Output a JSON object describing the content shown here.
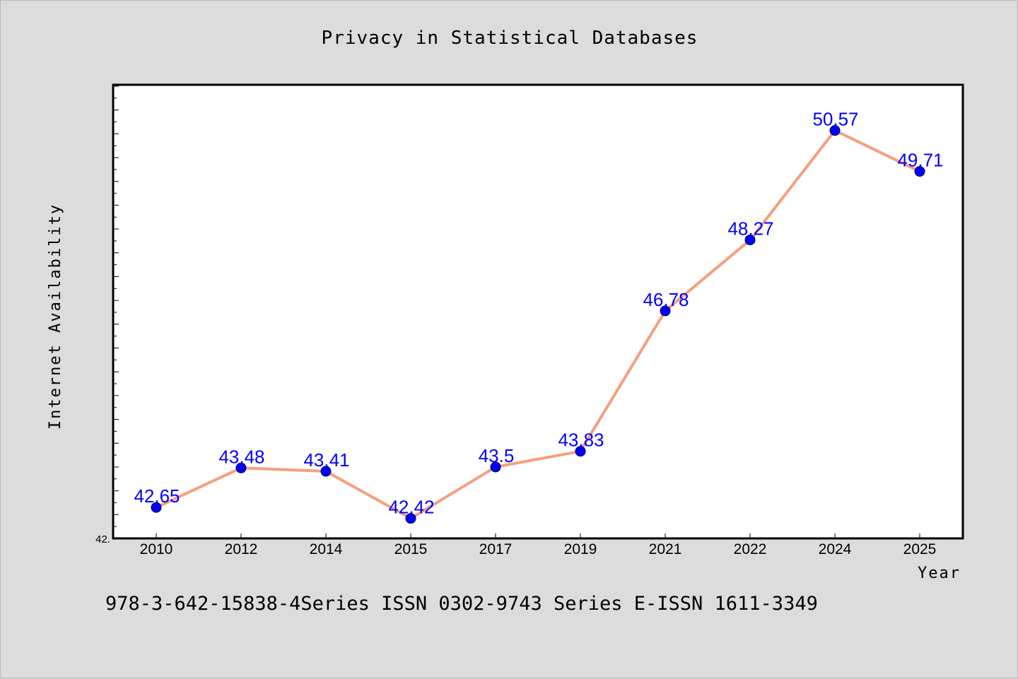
{
  "chart_data": {
    "type": "line",
    "title": "Privacy in Statistical Databases",
    "xlabel": "Year",
    "ylabel": "Internet Availability",
    "categories": [
      "2010",
      "2012",
      "2014",
      "2015",
      "2017",
      "2019",
      "2021",
      "2022",
      "2024",
      "2025"
    ],
    "series": [
      {
        "values": [
          42.65,
          43.48,
          43.41,
          42.42,
          43.5,
          43.83,
          46.78,
          48.27,
          50.57,
          49.71
        ],
        "data_labels": [
          "42.65",
          "43.48",
          "43.41",
          "42.42",
          "43.5",
          "43.83",
          "46.78",
          "48.27",
          "50.57",
          "49.71"
        ]
      }
    ],
    "y_tick_labels": [
      "42."
    ],
    "ylim": [
      42.0,
      51.5
    ],
    "grid": false,
    "legend": "none",
    "colors": {
      "line": "#f4a07c",
      "marker": "#0000ff",
      "data_label": "#0000ff",
      "plot_background": "#ffffff",
      "figure_background": "#dcdcdc"
    }
  },
  "footer": {
    "text": "978-3-642-15838-4Series ISSN 0302-9743 Series E-ISSN 1611-3349"
  }
}
